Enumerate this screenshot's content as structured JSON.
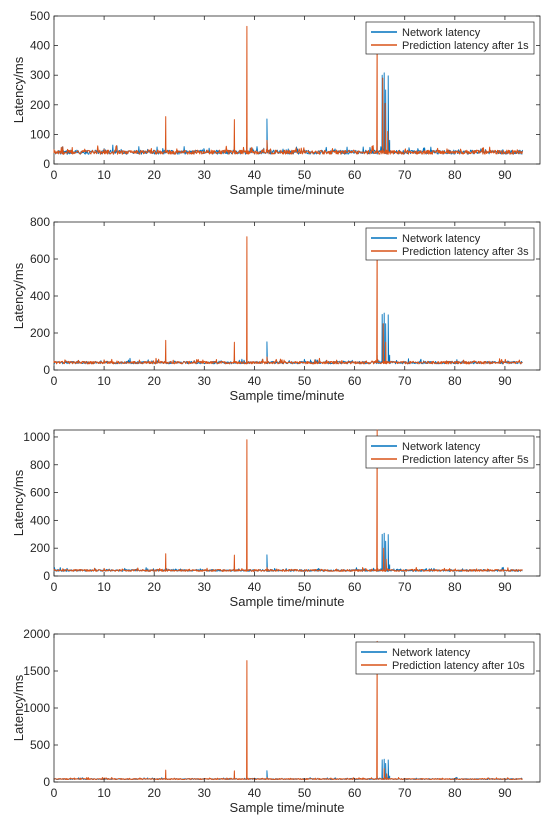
{
  "figure": {
    "colors": {
      "network": "#0072BD",
      "prediction": "#D95319",
      "axis": "#262626"
    }
  },
  "chart_data": [
    {
      "type": "line",
      "xlabel": "Sample time/minute",
      "ylabel": "Latency/ms",
      "xlim": [
        0,
        97
      ],
      "ylim": [
        0,
        500
      ],
      "xticks": [
        "0",
        "10",
        "20",
        "30",
        "40",
        "50",
        "60",
        "70",
        "80",
        "90"
      ],
      "yticks": [
        "0",
        "100",
        "200",
        "300",
        "400",
        "500"
      ],
      "legend_position": "top-right",
      "series": [
        {
          "name": "Network latency",
          "color": "#0072BD",
          "baseline": 40,
          "end_x": 93.5,
          "points": [
            [
              0,
              42
            ],
            [
              10,
              52
            ],
            [
              22.3,
              55
            ],
            [
              36,
              60
            ],
            [
              38.5,
              90
            ],
            [
              42.5,
              152
            ],
            [
              64.5,
              80
            ],
            [
              65.5,
              300
            ],
            [
              65.9,
              308
            ],
            [
              66.2,
              250
            ],
            [
              66.7,
              298
            ],
            [
              67,
              80
            ],
            [
              93.5,
              40
            ]
          ]
        },
        {
          "name": "Prediction latency after 1s",
          "color": "#D95319",
          "baseline": 40,
          "end_x": 93.5,
          "points": [
            [
              0,
              48
            ],
            [
              10,
              50
            ],
            [
              22.3,
              160
            ],
            [
              36,
              150
            ],
            [
              38.5,
              465
            ],
            [
              42.5,
              80
            ],
            [
              64.5,
              470
            ],
            [
              65.6,
              290
            ],
            [
              66.1,
              205
            ],
            [
              66.6,
              110
            ],
            [
              93.5,
              40
            ]
          ]
        }
      ]
    },
    {
      "type": "line",
      "xlabel": "Sample time/minute",
      "ylabel": "Latency/ms",
      "xlim": [
        0,
        97
      ],
      "ylim": [
        0,
        800
      ],
      "xticks": [
        "0",
        "10",
        "20",
        "30",
        "40",
        "50",
        "60",
        "70",
        "80",
        "90"
      ],
      "yticks": [
        "0",
        "200",
        "400",
        "600",
        "800"
      ],
      "legend_position": "top-right",
      "series": [
        {
          "name": "Network latency",
          "color": "#0072BD",
          "baseline": 40,
          "end_x": 93.5,
          "points": [
            [
              0,
              42
            ],
            [
              10,
              52
            ],
            [
              22.3,
              55
            ],
            [
              36,
              60
            ],
            [
              38.5,
              90
            ],
            [
              42.5,
              152
            ],
            [
              64.5,
              80
            ],
            [
              65.5,
              300
            ],
            [
              65.9,
              308
            ],
            [
              66.2,
              250
            ],
            [
              66.7,
              298
            ],
            [
              67,
              80
            ],
            [
              93.5,
              40
            ]
          ]
        },
        {
          "name": "Prediction latency after 3s",
          "color": "#D95319",
          "baseline": 40,
          "end_x": 93.5,
          "points": [
            [
              0,
              48
            ],
            [
              10,
              55
            ],
            [
              22.3,
              160
            ],
            [
              36,
              150
            ],
            [
              38.5,
              720
            ],
            [
              42.5,
              70
            ],
            [
              64.5,
              760
            ],
            [
              65.7,
              250
            ],
            [
              66.2,
              150
            ],
            [
              93.5,
              40
            ]
          ]
        }
      ]
    },
    {
      "type": "line",
      "xlabel": "Sample time/minute",
      "ylabel": "Latency/ms",
      "xlim": [
        0,
        97
      ],
      "ylim": [
        0,
        1050
      ],
      "xticks": [
        "0",
        "10",
        "20",
        "30",
        "40",
        "50",
        "60",
        "70",
        "80",
        "90"
      ],
      "yticks": [
        "0",
        "200",
        "400",
        "600",
        "800",
        "1000"
      ],
      "legend_position": "top-right",
      "series": [
        {
          "name": "Network latency",
          "color": "#0072BD",
          "baseline": 40,
          "end_x": 93.5,
          "points": [
            [
              0,
              42
            ],
            [
              10,
              52
            ],
            [
              22.3,
              55
            ],
            [
              36,
              60
            ],
            [
              38.5,
              90
            ],
            [
              42.5,
              152
            ],
            [
              64.5,
              80
            ],
            [
              65.5,
              300
            ],
            [
              65.9,
              308
            ],
            [
              66.2,
              250
            ],
            [
              66.7,
              298
            ],
            [
              67,
              80
            ],
            [
              93.5,
              40
            ]
          ]
        },
        {
          "name": "Prediction latency after 5s",
          "color": "#D95319",
          "baseline": 40,
          "end_x": 93.5,
          "points": [
            [
              0,
              48
            ],
            [
              10,
              55
            ],
            [
              22.3,
              160
            ],
            [
              36,
              150
            ],
            [
              38.5,
              980
            ],
            [
              42.5,
              60
            ],
            [
              64.5,
              1050
            ],
            [
              65.8,
              200
            ],
            [
              66.3,
              120
            ],
            [
              93.5,
              40
            ]
          ]
        }
      ]
    },
    {
      "type": "line",
      "xlabel": "Sample time/minute",
      "ylabel": "Latency/ms",
      "xlim": [
        0,
        97
      ],
      "ylim": [
        0,
        2000
      ],
      "xticks": [
        "0",
        "10",
        "20",
        "30",
        "40",
        "50",
        "60",
        "70",
        "80",
        "90"
      ],
      "yticks": [
        "0",
        "500",
        "1000",
        "1500",
        "2000"
      ],
      "legend_position": "top-right",
      "series": [
        {
          "name": "Network latency",
          "color": "#0072BD",
          "baseline": 40,
          "end_x": 93.5,
          "points": [
            [
              0,
              42
            ],
            [
              10,
              52
            ],
            [
              22.3,
              55
            ],
            [
              36,
              60
            ],
            [
              38.5,
              90
            ],
            [
              42.5,
              152
            ],
            [
              64.5,
              80
            ],
            [
              65.5,
              300
            ],
            [
              65.9,
              308
            ],
            [
              66.2,
              250
            ],
            [
              66.7,
              298
            ],
            [
              67,
              80
            ],
            [
              93.5,
              40
            ]
          ]
        },
        {
          "name": "Prediction latency after 10s",
          "color": "#D95319",
          "baseline": 40,
          "end_x": 93.5,
          "points": [
            [
              0,
              48
            ],
            [
              10,
              55
            ],
            [
              22.3,
              160
            ],
            [
              36,
              150
            ],
            [
              38.5,
              1640
            ],
            [
              42.5,
              60
            ],
            [
              64.5,
              1900
            ],
            [
              65.9,
              180
            ],
            [
              66.4,
              110
            ],
            [
              93.5,
              40
            ]
          ]
        }
      ]
    }
  ]
}
